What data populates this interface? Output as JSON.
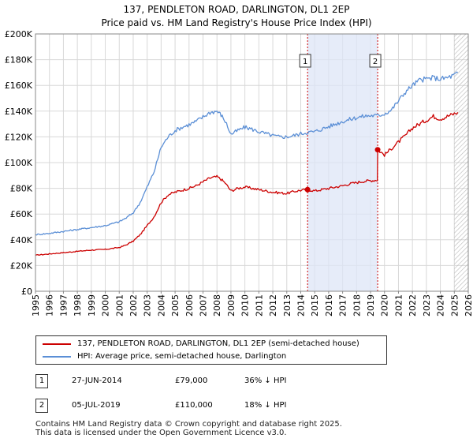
{
  "title": {
    "line1": "137, PENDLETON ROAD, DARLINGTON, DL1 2EP",
    "line2": "Price paid vs. HM Land Registry's House Price Index (HPI)"
  },
  "chart_data": {
    "type": "line",
    "title": "137, PENDLETON ROAD, DARLINGTON, DL1 2EP",
    "subtitle": "Price paid vs. HM Land Registry's House Price Index (HPI)",
    "xlabel": "",
    "ylabel": "",
    "xlim": [
      1995,
      2026
    ],
    "ylim": [
      0,
      200000
    ],
    "y_ticks": [
      0,
      20000,
      40000,
      60000,
      80000,
      100000,
      120000,
      140000,
      160000,
      180000,
      200000
    ],
    "y_tick_labels": [
      "£0",
      "£20K",
      "£40K",
      "£60K",
      "£80K",
      "£100K",
      "£120K",
      "£140K",
      "£160K",
      "£180K",
      "£200K"
    ],
    "x_ticks": [
      1995,
      1996,
      1997,
      1998,
      1999,
      2000,
      2001,
      2002,
      2003,
      2004,
      2005,
      2006,
      2007,
      2008,
      2009,
      2010,
      2011,
      2012,
      2013,
      2014,
      2015,
      2016,
      2017,
      2018,
      2019,
      2020,
      2021,
      2022,
      2023,
      2024,
      2025,
      2026
    ],
    "grid": true,
    "highlight_span": [
      2014.49,
      2019.51
    ],
    "future_hatch_from": 2025.0,
    "series": [
      {
        "name": "137, PENDLETON ROAD, DARLINGTON, DL1 2EP (semi-detached house)",
        "color": "#cc0000",
        "x": [
          1995,
          1996,
          1997,
          1998,
          1999,
          2000,
          2001,
          2001.5,
          2002,
          2002.5,
          2003,
          2003.5,
          2004,
          2004.5,
          2005,
          2005.5,
          2006,
          2006.5,
          2007,
          2007.5,
          2008,
          2008.3,
          2008.6,
          2009,
          2009.5,
          2010,
          2010.5,
          2011,
          2011.5,
          2012,
          2012.5,
          2013,
          2013.5,
          2014,
          2014.49,
          2015,
          2015.5,
          2016,
          2016.5,
          2017,
          2017.5,
          2018,
          2018.5,
          2019,
          2019.49,
          2019.51,
          2020,
          2020.5,
          2021,
          2021.5,
          2022,
          2022.5,
          2023,
          2023.5,
          2024,
          2024.5,
          2025,
          2025.25
        ],
        "y": [
          28000,
          29000,
          30000,
          31000,
          32000,
          32500,
          34000,
          36000,
          39000,
          44000,
          51000,
          58000,
          69000,
          75000,
          77000,
          78500,
          80000,
          82000,
          85000,
          88000,
          89000,
          87000,
          84000,
          78000,
          80000,
          81000,
          80000,
          79000,
          78000,
          77000,
          76500,
          76000,
          77500,
          78500,
          79000,
          78000,
          79000,
          80000,
          81000,
          82000,
          83500,
          84500,
          85500,
          86000,
          86500,
          110000,
          106000,
          111000,
          116000,
          121000,
          127000,
          130000,
          133000,
          136000,
          134000,
          136000,
          138000,
          139000
        ]
      },
      {
        "name": "HPI: Average price, semi-detached house, Darlington",
        "color": "#5b8fd6",
        "x": [
          1995,
          1996,
          1997,
          1998,
          1999,
          2000,
          2001,
          2001.5,
          2002,
          2002.5,
          2003,
          2003.5,
          2004,
          2004.5,
          2005,
          2005.5,
          2006,
          2006.5,
          2007,
          2007.5,
          2008,
          2008.3,
          2008.6,
          2009,
          2009.5,
          2010,
          2010.5,
          2011,
          2011.5,
          2012,
          2012.5,
          2013,
          2013.5,
          2014,
          2014.49,
          2015,
          2015.5,
          2016,
          2016.5,
          2017,
          2017.5,
          2018,
          2018.5,
          2019,
          2019.51,
          2020,
          2020.5,
          2021,
          2021.5,
          2022,
          2022.5,
          2023,
          2023.5,
          2024,
          2024.5,
          2025,
          2025.25
        ],
        "y": [
          44000,
          45000,
          46500,
          48000,
          49500,
          51000,
          54000,
          57000,
          61000,
          69000,
          81000,
          93000,
          112000,
          120000,
          125000,
          127500,
          129500,
          132000,
          135500,
          139000,
          140000,
          137000,
          132000,
          122000,
          125000,
          127500,
          126000,
          124000,
          122500,
          121000,
          120000,
          120000,
          121000,
          122500,
          123500,
          124000,
          126000,
          128000,
          130000,
          132000,
          133500,
          135000,
          136000,
          136500,
          136500,
          138000,
          141000,
          148000,
          155000,
          160000,
          164000,
          165000,
          166000,
          165000,
          166000,
          168000,
          170000
        ]
      }
    ],
    "transactions": [
      {
        "label": "1",
        "date": "27-JUN-2014",
        "x": 2014.49,
        "price": 79000,
        "price_text": "£79,000",
        "hpi_text": "36% ↓ HPI"
      },
      {
        "label": "2",
        "date": "05-JUL-2019",
        "x": 2019.51,
        "price": 110000,
        "price_text": "£110,000",
        "hpi_text": "18% ↓ HPI"
      }
    ]
  },
  "legend": {
    "property_label": "137, PENDLETON ROAD, DARLINGTON, DL1 2EP (semi-detached house)",
    "hpi_label": "HPI: Average price, semi-detached house, Darlington"
  },
  "table": [
    {
      "badge": "1",
      "date": "27-JUN-2014",
      "price": "£79,000",
      "hpi": "36% ↓ HPI"
    },
    {
      "badge": "2",
      "date": "05-JUL-2019",
      "price": "£110,000",
      "hpi": "18% ↓ HPI"
    }
  ],
  "footer": {
    "line1": "Contains HM Land Registry data © Crown copyright and database right 2025.",
    "line2": "This data is licensed under the Open Government Licence v3.0."
  }
}
